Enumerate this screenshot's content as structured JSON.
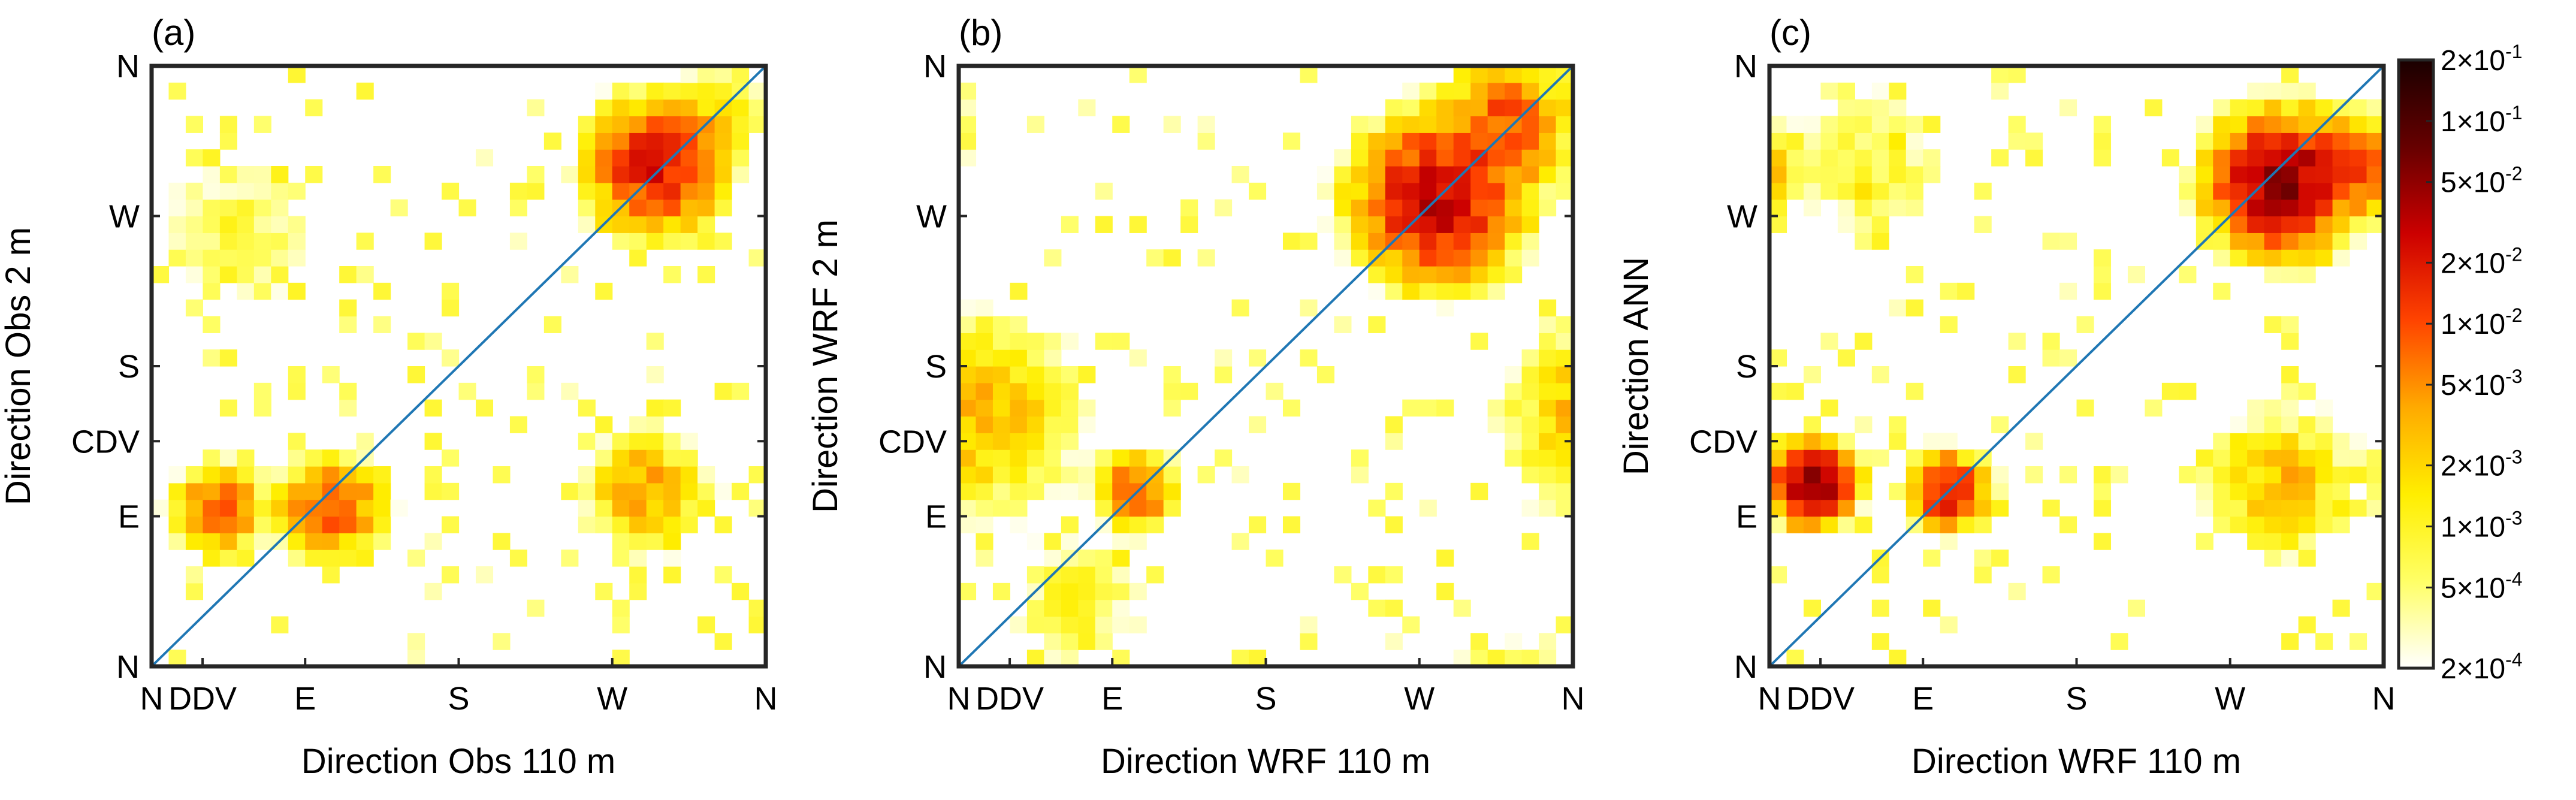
{
  "chart_data": [
    {
      "type": "heatmap",
      "panel_label": "(a)",
      "xlabel": "Direction Obs 110 m",
      "ylabel": "Direction Obs 2 m",
      "x_ticks": [
        "N",
        "DDV",
        "E",
        "S",
        "W",
        "N"
      ],
      "y_ticks": [
        "N",
        "E",
        "CDV",
        "S",
        "W",
        "N"
      ],
      "diagonal_line": true,
      "hotspots": [
        {
          "x_deg": 105,
          "y_deg": 95,
          "value": 0.01,
          "spread_deg": 20
        },
        {
          "x_deg": 295,
          "y_deg": 300,
          "value": 0.02,
          "spread_deg": 25
        },
        {
          "x_deg": 40,
          "y_deg": 95,
          "value": 0.008,
          "spread_deg": 18
        },
        {
          "x_deg": 290,
          "y_deg": 105,
          "value": 0.004,
          "spread_deg": 25
        },
        {
          "x_deg": 50,
          "y_deg": 260,
          "value": 0.0008,
          "spread_deg": 35
        },
        {
          "x_deg": 330,
          "y_deg": 330,
          "value": 0.002,
          "spread_deg": 20
        }
      ]
    },
    {
      "type": "heatmap",
      "panel_label": "(b)",
      "xlabel": "Direction WRF 110 m",
      "ylabel": "Direction WRF 2 m",
      "x_ticks": [
        "N",
        "DDV",
        "E",
        "S",
        "W",
        "N"
      ],
      "y_ticks": [
        "N",
        "E",
        "CDV",
        "S",
        "W",
        "N"
      ],
      "diagonal_line": true,
      "hotspots": [
        {
          "x_deg": 280,
          "y_deg": 280,
          "value": 0.03,
          "spread_deg": 30
        },
        {
          "x_deg": 320,
          "y_deg": 325,
          "value": 0.01,
          "spread_deg": 25
        },
        {
          "x_deg": 105,
          "y_deg": 105,
          "value": 0.01,
          "spread_deg": 15
        },
        {
          "x_deg": 15,
          "y_deg": 150,
          "value": 0.003,
          "spread_deg": 40
        },
        {
          "x_deg": 70,
          "y_deg": 40,
          "value": 0.001,
          "spread_deg": 30
        }
      ]
    },
    {
      "type": "heatmap",
      "panel_label": "(c)",
      "xlabel": "Direction WRF 110 m",
      "ylabel": "Direction ANN",
      "x_ticks": [
        "N",
        "DDV",
        "E",
        "S",
        "W",
        "N"
      ],
      "y_ticks": [
        "N",
        "E",
        "CDV",
        "S",
        "W",
        "N"
      ],
      "diagonal_line": true,
      "hotspots": [
        {
          "x_deg": 25,
          "y_deg": 110,
          "value": 0.05,
          "spread_deg": 15
        },
        {
          "x_deg": 105,
          "y_deg": 105,
          "value": 0.02,
          "spread_deg": 15
        },
        {
          "x_deg": 300,
          "y_deg": 290,
          "value": 0.05,
          "spread_deg": 25
        },
        {
          "x_deg": 340,
          "y_deg": 300,
          "value": 0.01,
          "spread_deg": 20
        },
        {
          "x_deg": 300,
          "y_deg": 110,
          "value": 0.003,
          "spread_deg": 30
        },
        {
          "x_deg": 60,
          "y_deg": 300,
          "value": 0.001,
          "spread_deg": 35
        }
      ]
    }
  ],
  "colorbar": {
    "scale": "log",
    "range": [
      0.0002,
      0.2
    ],
    "labels": [
      {
        "mant": "2",
        "exp": "-1",
        "value": 0.2
      },
      {
        "mant": "1",
        "exp": "-1",
        "value": 0.1
      },
      {
        "mant": "5",
        "exp": "-2",
        "value": 0.05
      },
      {
        "mant": "2",
        "exp": "-2",
        "value": 0.02
      },
      {
        "mant": "1",
        "exp": "-2",
        "value": 0.01
      },
      {
        "mant": "5",
        "exp": "-3",
        "value": 0.005
      },
      {
        "mant": "2",
        "exp": "-3",
        "value": 0.002
      },
      {
        "mant": "1",
        "exp": "-3",
        "value": 0.001
      },
      {
        "mant": "5",
        "exp": "-4",
        "value": 0.0005
      },
      {
        "mant": "2",
        "exp": "-4",
        "value": 0.0002
      }
    ],
    "colors": [
      "#ffffff",
      "#ffff66",
      "#ffee00",
      "#ffaa00",
      "#ff4400",
      "#cc0000",
      "#660000",
      "#1a0000"
    ]
  }
}
